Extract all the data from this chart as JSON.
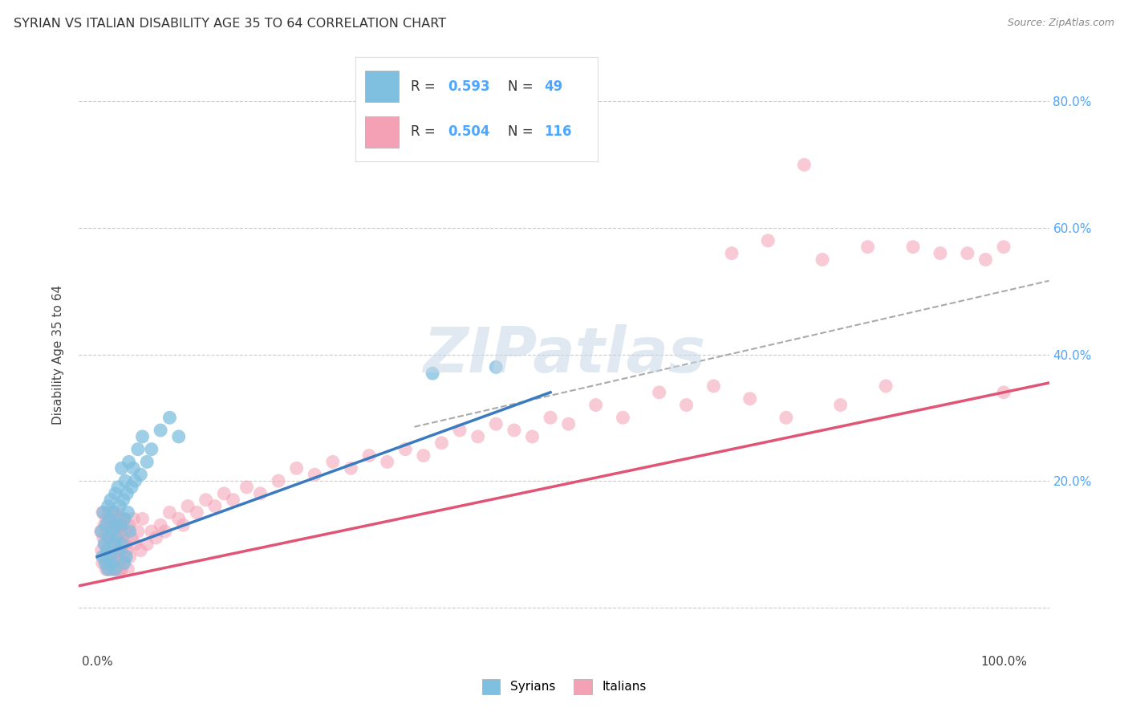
{
  "title": "SYRIAN VS ITALIAN DISABILITY AGE 35 TO 64 CORRELATION CHART",
  "source": "Source: ZipAtlas.com",
  "ylabel": "Disability Age 35 to 64",
  "syrian_color": "#7fbfdf",
  "italian_color": "#f4a0b5",
  "syrian_line_color": "#3a7bbf",
  "italian_line_color": "#e05575",
  "trend_line_color": "#aaaaaa",
  "watermark_color": "#c8d8e8",
  "background_color": "#ffffff",
  "syrian_x": [
    0.005,
    0.006,
    0.007,
    0.008,
    0.009,
    0.01,
    0.011,
    0.012,
    0.012,
    0.013,
    0.014,
    0.015,
    0.015,
    0.016,
    0.017,
    0.018,
    0.019,
    0.02,
    0.02,
    0.021,
    0.022,
    0.023,
    0.024,
    0.025,
    0.026,
    0.027,
    0.028,
    0.029,
    0.03,
    0.03,
    0.031,
    0.032,
    0.033,
    0.034,
    0.035,
    0.036,
    0.038,
    0.04,
    0.042,
    0.045,
    0.048,
    0.05,
    0.055,
    0.06,
    0.07,
    0.08,
    0.09,
    0.37,
    0.44
  ],
  "syrian_y": [
    0.12,
    0.08,
    0.15,
    0.1,
    0.07,
    0.13,
    0.09,
    0.16,
    0.06,
    0.11,
    0.14,
    0.08,
    0.17,
    0.12,
    0.07,
    0.15,
    0.1,
    0.18,
    0.06,
    0.13,
    0.11,
    0.19,
    0.09,
    0.16,
    0.13,
    0.22,
    0.1,
    0.17,
    0.14,
    0.07,
    0.2,
    0.08,
    0.18,
    0.15,
    0.23,
    0.12,
    0.19,
    0.22,
    0.2,
    0.25,
    0.21,
    0.27,
    0.23,
    0.25,
    0.28,
    0.3,
    0.27,
    0.37,
    0.38
  ],
  "italian_x": [
    0.004,
    0.005,
    0.006,
    0.006,
    0.007,
    0.008,
    0.008,
    0.009,
    0.01,
    0.01,
    0.011,
    0.011,
    0.012,
    0.012,
    0.013,
    0.013,
    0.014,
    0.014,
    0.015,
    0.015,
    0.015,
    0.016,
    0.016,
    0.017,
    0.017,
    0.018,
    0.018,
    0.019,
    0.019,
    0.02,
    0.02,
    0.02,
    0.021,
    0.021,
    0.022,
    0.022,
    0.023,
    0.023,
    0.024,
    0.024,
    0.025,
    0.025,
    0.026,
    0.026,
    0.027,
    0.027,
    0.028,
    0.028,
    0.029,
    0.03,
    0.03,
    0.031,
    0.032,
    0.033,
    0.034,
    0.035,
    0.036,
    0.038,
    0.04,
    0.042,
    0.045,
    0.048,
    0.05,
    0.055,
    0.06,
    0.065,
    0.07,
    0.075,
    0.08,
    0.09,
    0.095,
    0.1,
    0.11,
    0.12,
    0.13,
    0.14,
    0.15,
    0.165,
    0.18,
    0.2,
    0.22,
    0.24,
    0.26,
    0.28,
    0.3,
    0.32,
    0.34,
    0.36,
    0.38,
    0.4,
    0.42,
    0.44,
    0.46,
    0.48,
    0.5,
    0.52,
    0.55,
    0.58,
    0.62,
    0.65,
    0.68,
    0.7,
    0.72,
    0.74,
    0.76,
    0.78,
    0.8,
    0.82,
    0.85,
    0.87,
    0.9,
    0.93,
    0.96,
    0.98,
    1.0,
    1.0
  ],
  "italian_y": [
    0.12,
    0.09,
    0.15,
    0.07,
    0.11,
    0.13,
    0.08,
    0.1,
    0.14,
    0.06,
    0.12,
    0.07,
    0.15,
    0.09,
    0.11,
    0.06,
    0.13,
    0.08,
    0.1,
    0.14,
    0.07,
    0.12,
    0.06,
    0.15,
    0.09,
    0.11,
    0.06,
    0.13,
    0.08,
    0.14,
    0.07,
    0.1,
    0.12,
    0.06,
    0.15,
    0.09,
    0.11,
    0.07,
    0.13,
    0.08,
    0.14,
    0.06,
    0.1,
    0.12,
    0.09,
    0.06,
    0.13,
    0.07,
    0.11,
    0.14,
    0.08,
    0.1,
    0.12,
    0.09,
    0.06,
    0.13,
    0.08,
    0.11,
    0.14,
    0.1,
    0.12,
    0.09,
    0.14,
    0.1,
    0.12,
    0.11,
    0.13,
    0.12,
    0.15,
    0.14,
    0.13,
    0.16,
    0.15,
    0.17,
    0.16,
    0.18,
    0.17,
    0.19,
    0.18,
    0.2,
    0.22,
    0.21,
    0.23,
    0.22,
    0.24,
    0.23,
    0.25,
    0.24,
    0.26,
    0.28,
    0.27,
    0.29,
    0.28,
    0.27,
    0.3,
    0.29,
    0.32,
    0.3,
    0.34,
    0.32,
    0.35,
    0.56,
    0.33,
    0.58,
    0.3,
    0.7,
    0.55,
    0.32,
    0.57,
    0.35,
    0.57,
    0.56,
    0.56,
    0.55,
    0.34,
    0.57
  ],
  "xlim": [
    -0.02,
    1.05
  ],
  "ylim": [
    -0.07,
    0.87
  ],
  "xtick_vals": [
    0.0,
    0.2,
    0.4,
    0.6,
    0.8,
    1.0
  ],
  "xtick_labels": [
    "0.0%",
    "",
    "",
    "",
    "",
    "100.0%"
  ],
  "ytick_vals": [
    0.0,
    0.2,
    0.4,
    0.6,
    0.8
  ],
  "ytick_labels_right": [
    "",
    "20.0%",
    "40.0%",
    "60.0%",
    "80.0%"
  ],
  "right_tick_color": "#4da6ff",
  "legend_r_syr": "0.593",
  "legend_n_syr": "49",
  "legend_r_ita": "0.504",
  "legend_n_ita": "116"
}
